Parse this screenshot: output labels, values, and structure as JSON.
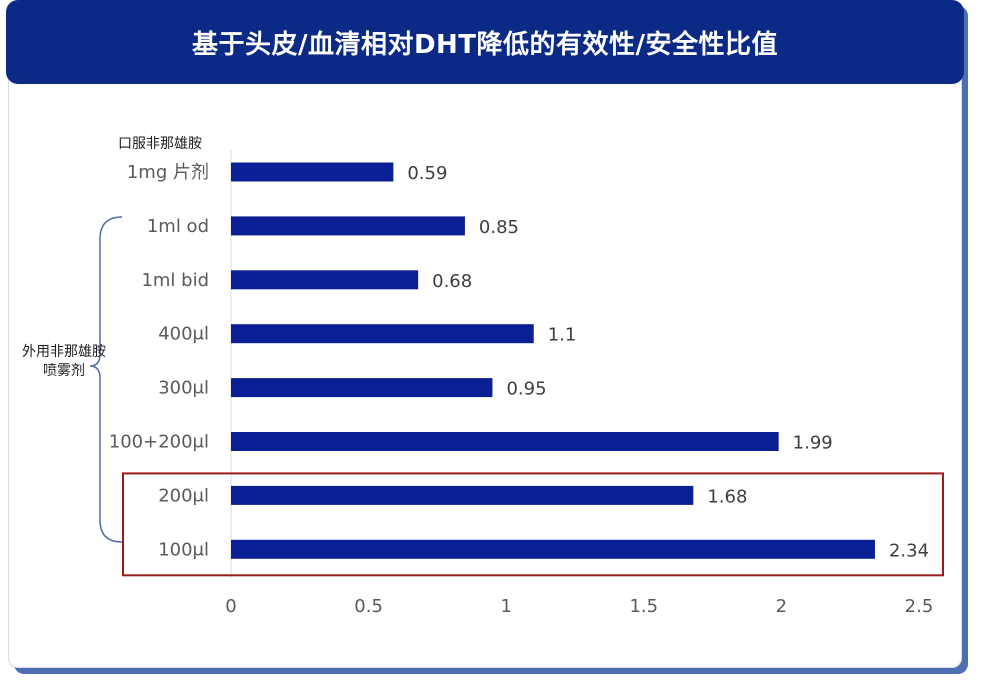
{
  "title": "基于头皮/血清相对DHT降低的有效性/安全性比值",
  "colors": {
    "bar": "#0a1f94",
    "title_bg": "#0b2a86",
    "highlight_border": "#9b1b1b",
    "brace": "#4a6fa5"
  },
  "group_labels": {
    "oral": "口服非那雄胺",
    "topical_line1": "外用非那雄胺",
    "topical_line2": "喷雾剂"
  },
  "chart_data": {
    "type": "bar",
    "orientation": "horizontal",
    "title": "基于头皮/血清相对DHT降低的有效性/安全性比值",
    "categories": [
      "1mg 片剂",
      "1ml od",
      "1ml bid",
      "400μl",
      "300μl",
      "100+200μl",
      "200μl",
      "100μl"
    ],
    "values": [
      0.59,
      0.85,
      0.68,
      1.1,
      0.95,
      1.99,
      1.68,
      2.34
    ],
    "value_labels": [
      "0.59",
      "0.85",
      "0.68",
      "1.1",
      "0.95",
      "1.99",
      "1.68",
      "2.34"
    ],
    "xlim": [
      0,
      2.5
    ],
    "xticks": [
      0,
      0.5,
      1,
      1.5,
      2,
      2.5
    ],
    "xtick_labels": [
      "0",
      "0.5",
      "1",
      "1.5",
      "2",
      "2.5"
    ],
    "grid": false,
    "highlighted_categories": [
      "200μl",
      "100μl"
    ]
  }
}
